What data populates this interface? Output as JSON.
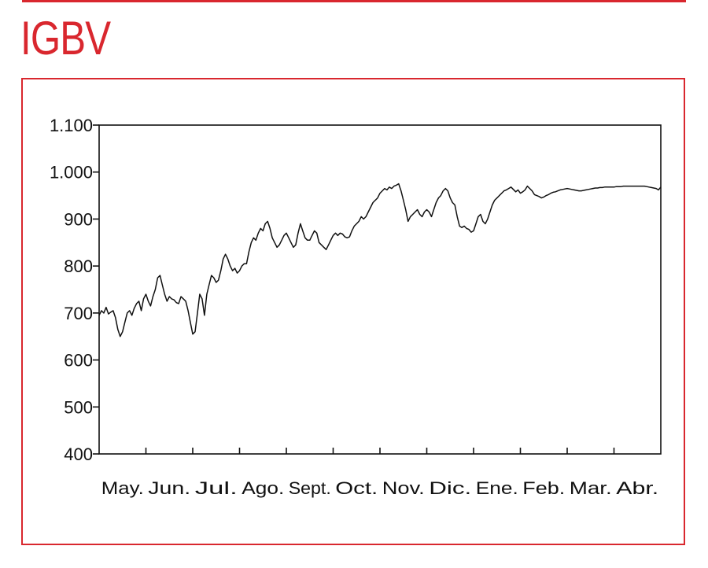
{
  "page": {
    "title": "IGBV",
    "accent_color": "#d9272e",
    "line_color": "#111111"
  },
  "chart_data": {
    "type": "line",
    "title": "IGBV",
    "xlabel": "",
    "ylabel": "",
    "ylim": [
      400,
      1100
    ],
    "yticks": [
      400,
      500,
      600,
      700,
      800,
      900,
      1000,
      1100
    ],
    "ytick_labels": [
      "400",
      "500",
      "600",
      "700",
      "800",
      "900",
      "1.000",
      "1.100"
    ],
    "months": [
      "May.",
      "Jun.",
      "Jul.",
      "Ago.",
      "Sept.",
      "Oct.",
      "Nov.",
      "Dic.",
      "Ene.",
      "Feb.",
      "Mar.",
      "Abr."
    ],
    "xlim": [
      0,
      12
    ],
    "grid": false,
    "legend": "none",
    "series": [
      {
        "x": [
          0,
          0.05,
          0.1,
          0.15,
          0.2,
          0.25,
          0.3,
          0.35,
          0.4,
          0.45,
          0.5,
          0.55,
          0.6,
          0.65,
          0.7,
          0.75,
          0.8,
          0.85,
          0.9,
          0.95,
          1.0,
          1.05,
          1.1,
          1.15,
          1.2,
          1.25,
          1.3,
          1.35,
          1.4,
          1.45,
          1.5,
          1.55,
          1.6,
          1.65,
          1.7,
          1.75,
          1.8,
          1.85,
          1.9,
          1.95,
          2.0,
          2.05,
          2.1,
          2.15,
          2.2,
          2.25,
          2.3,
          2.35,
          2.4,
          2.45,
          2.5,
          2.55,
          2.6,
          2.65,
          2.7,
          2.75,
          2.8,
          2.85,
          2.9,
          2.95,
          3.0,
          3.05,
          3.1,
          3.15,
          3.2,
          3.25,
          3.3,
          3.35,
          3.4,
          3.45,
          3.5,
          3.55,
          3.6,
          3.65,
          3.7,
          3.75,
          3.8,
          3.85,
          3.9,
          3.95,
          4.0,
          4.05,
          4.1,
          4.15,
          4.2,
          4.25,
          4.3,
          4.35,
          4.4,
          4.45,
          4.5,
          4.55,
          4.6,
          4.65,
          4.7,
          4.75,
          4.8,
          4.85,
          4.9,
          4.95,
          5.0,
          5.05,
          5.1,
          5.15,
          5.2,
          5.25,
          5.3,
          5.35,
          5.4,
          5.45,
          5.5,
          5.55,
          5.6,
          5.65,
          5.7,
          5.75,
          5.8,
          5.85,
          5.9,
          5.95,
          6.0,
          6.05,
          6.1,
          6.15,
          6.2,
          6.25,
          6.3,
          6.35,
          6.4,
          6.45,
          6.5,
          6.55,
          6.6,
          6.65,
          6.7,
          6.75,
          6.8,
          6.85,
          6.9,
          6.95,
          7.0,
          7.05,
          7.1,
          7.15,
          7.2,
          7.25,
          7.3,
          7.35,
          7.4,
          7.45,
          7.5,
          7.55,
          7.6,
          7.65,
          7.7,
          7.75,
          7.8,
          7.85,
          7.9,
          7.95,
          8.0,
          8.05,
          8.1,
          8.15,
          8.2,
          8.25,
          8.3,
          8.35,
          8.4,
          8.45,
          8.5,
          8.55,
          8.6,
          8.65,
          8.7,
          8.75,
          8.8,
          8.85,
          8.9,
          8.95,
          9.0,
          9.05,
          9.1,
          9.15,
          9.2,
          9.25,
          9.3,
          9.35,
          9.4,
          9.45,
          9.5,
          9.55,
          9.6,
          9.65,
          9.7,
          9.75,
          9.8,
          9.85,
          9.9,
          9.95,
          10.0,
          10.05,
          10.1,
          10.15,
          10.2,
          10.25,
          10.3,
          10.35,
          10.4,
          10.45,
          10.5,
          10.55,
          10.6,
          10.65,
          10.7,
          10.75,
          10.8,
          10.85,
          10.9,
          10.95,
          11.0,
          11.05,
          11.1,
          11.15,
          11.2,
          11.25,
          11.3,
          11.35,
          11.4,
          11.45,
          11.5,
          11.55,
          11.6,
          11.65,
          11.7,
          11.75,
          11.8,
          11.85,
          11.9,
          11.95,
          12.0
        ],
        "values": [
          695,
          705,
          700,
          712,
          698,
          702,
          705,
          690,
          665,
          650,
          660,
          680,
          700,
          705,
          695,
          710,
          720,
          725,
          705,
          730,
          740,
          725,
          715,
          735,
          750,
          775,
          780,
          760,
          740,
          725,
          735,
          730,
          728,
          722,
          720,
          735,
          730,
          725,
          705,
          680,
          655,
          660,
          700,
          740,
          730,
          695,
          740,
          760,
          780,
          775,
          765,
          770,
          790,
          815,
          825,
          815,
          800,
          790,
          795,
          785,
          790,
          800,
          805,
          805,
          830,
          850,
          860,
          855,
          870,
          880,
          875,
          890,
          895,
          880,
          860,
          850,
          840,
          845,
          855,
          865,
          870,
          860,
          850,
          840,
          845,
          870,
          890,
          875,
          860,
          855,
          855,
          865,
          875,
          870,
          850,
          845,
          840,
          835,
          845,
          855,
          865,
          870,
          865,
          870,
          868,
          862,
          860,
          862,
          875,
          885,
          890,
          895,
          905,
          900,
          905,
          915,
          925,
          935,
          940,
          945,
          955,
          960,
          965,
          962,
          968,
          965,
          970,
          972,
          975,
          960,
          940,
          920,
          895,
          905,
          910,
          915,
          920,
          910,
          905,
          915,
          920,
          915,
          905,
          920,
          935,
          945,
          950,
          960,
          965,
          960,
          945,
          935,
          930,
          905,
          885,
          882,
          885,
          880,
          878,
          872,
          875,
          890,
          905,
          910,
          895,
          890,
          900,
          915,
          930,
          940,
          945,
          950,
          955,
          960,
          962,
          965,
          968,
          963,
          958,
          962,
          955,
          958,
          962,
          970,
          965,
          960,
          952,
          950,
          948,
          945,
          947,
          950,
          952,
          955,
          957,
          958,
          960,
          962,
          963,
          964,
          965,
          964,
          963,
          962,
          961,
          960,
          960,
          961,
          962,
          963,
          964,
          965,
          966,
          966,
          967,
          967,
          968,
          968,
          968,
          968,
          968,
          969,
          969,
          969,
          970,
          970,
          970,
          970,
          970,
          970,
          970,
          970,
          970,
          970,
          969,
          968,
          967,
          966,
          965,
          962,
          968
        ]
      }
    ]
  }
}
